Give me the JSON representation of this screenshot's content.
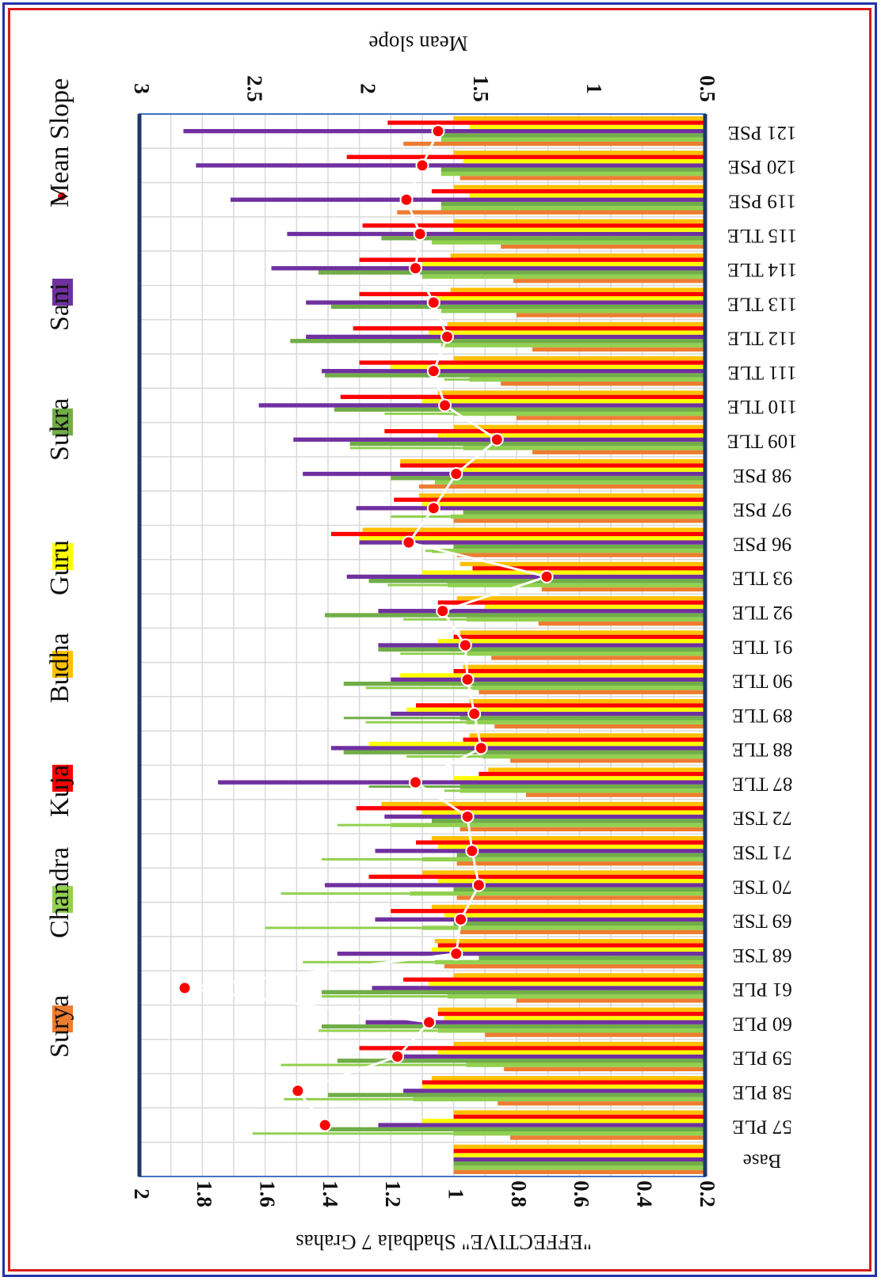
{
  "chart_data": {
    "type": "bar",
    "orientation": "horizontal-rotated",
    "categories": [
      "Base",
      "57 PLE",
      "58 PLE",
      "59 PLE",
      "60 PLE",
      "61 PLE",
      "68 TSE",
      "69 TSE",
      "70 TSE",
      "71 TSE",
      "72 TSE",
      "87 TLE",
      "88 TLE",
      "89 TLE",
      "90 TLE",
      "91 TLE",
      "92 TLE",
      "93 TLE",
      "96 PSE",
      "97 PSE",
      "98 PSE",
      "109 TLE",
      "110 TLE",
      "111 TLE",
      "112 TLE",
      "113 TLE",
      "114 TLE",
      "115 TLE",
      "119 PSE",
      "120 PSE",
      "121 PSE"
    ],
    "series": [
      {
        "name": "Surya",
        "color": "#ed7d31",
        "values": [
          1.0,
          0.82,
          0.86,
          0.84,
          0.9,
          0.8,
          1.03,
          0.98,
          0.99,
          0.99,
          0.98,
          0.77,
          0.82,
          0.87,
          0.92,
          0.88,
          0.73,
          0.72,
          0.99,
          1.0,
          1.11,
          0.75,
          0.8,
          0.85,
          0.75,
          0.8,
          0.81,
          0.85,
          1.18,
          0.98,
          1.16
        ],
        "lo": [
          1.0,
          0.82,
          0.86,
          0.84,
          0.9,
          0.8,
          1.03,
          0.98,
          0.99,
          0.99,
          0.98,
          0.77,
          0.82,
          0.87,
          0.92,
          0.88,
          0.73,
          0.72,
          0.99,
          1.0,
          1.11,
          0.75,
          0.8,
          0.85,
          0.75,
          0.8,
          0.81,
          0.85,
          1.18,
          0.98,
          1.16
        ],
        "hi": [
          1.0,
          0.82,
          0.86,
          0.84,
          0.9,
          0.8,
          1.03,
          0.98,
          0.99,
          0.99,
          0.98,
          0.77,
          0.82,
          0.87,
          0.92,
          0.88,
          0.73,
          0.72,
          0.99,
          1.0,
          1.11,
          0.75,
          0.8,
          0.85,
          0.75,
          0.8,
          0.81,
          0.85,
          1.18,
          0.98,
          1.16
        ]
      },
      {
        "name": "Chandra",
        "color": "#92d050",
        "values": [
          1.0,
          1.0,
          1.13,
          0.96,
          1.05,
          1.02,
          1.06,
          1.1,
          1.14,
          1.1,
          1.2,
          0.98,
          0.91,
          0.96,
          0.94,
          0.96,
          0.96,
          1.02,
          1.07,
          1.01,
          1.06,
          0.97,
          1.0,
          0.95,
          1.04,
          1.04,
          1.1,
          1.07,
          1.04,
          1.04,
          1.04
        ],
        "lo": [
          1.0,
          1.0,
          1.13,
          0.96,
          1.05,
          1.02,
          1.06,
          1.1,
          1.14,
          1.1,
          1.2,
          0.98,
          0.91,
          0.96,
          0.94,
          0.96,
          0.96,
          1.02,
          1.07,
          1.01,
          1.06,
          0.97,
          1.0,
          0.95,
          1.04,
          1.04,
          1.1,
          1.07,
          1.04,
          1.04,
          1.04
        ],
        "hi": [
          1.0,
          1.64,
          1.54,
          1.55,
          1.43,
          1.42,
          1.48,
          1.6,
          1.55,
          1.42,
          1.37,
          1.03,
          1.15,
          1.28,
          1.28,
          1.17,
          1.16,
          1.21,
          1.09,
          1.2,
          1.06,
          1.33,
          1.22,
          1.03,
          1.04,
          1.04,
          1.1,
          1.07,
          1.04,
          1.04,
          1.04
        ]
      },
      {
        "name": "Sukra",
        "color": "#70ad47",
        "values": [
          1.0,
          1.4,
          1.4,
          1.37,
          1.42,
          1.42,
          0.92,
          1.0,
          1.0,
          0.99,
          1.07,
          0.98,
          1.35,
          0.98,
          1.35,
          1.24,
          1.41,
          1.27,
          1.0,
          0.97,
          1.2,
          1.33,
          1.38,
          1.41,
          1.52,
          1.39,
          1.43,
          1.23,
          1.04,
          1.04,
          1.04
        ],
        "lo": [
          1.0,
          1.0,
          1.0,
          1.0,
          1.0,
          1.0,
          0.92,
          1.0,
          1.0,
          0.99,
          1.07,
          0.98,
          1.0,
          0.98,
          1.0,
          1.0,
          1.0,
          1.0,
          1.0,
          0.97,
          1.0,
          1.0,
          1.0,
          1.0,
          1.0,
          1.0,
          1.0,
          1.0,
          1.04,
          1.04,
          1.04
        ],
        "hi": [
          1.0,
          1.4,
          1.4,
          1.37,
          1.42,
          1.42,
          0.92,
          1.0,
          1.0,
          0.99,
          1.07,
          1.27,
          1.35,
          1.35,
          1.35,
          1.24,
          1.41,
          1.27,
          1.0,
          0.97,
          1.2,
          1.33,
          1.38,
          1.41,
          1.52,
          1.39,
          1.43,
          1.23,
          1.04,
          1.04,
          1.04
        ]
      },
      {
        "name": "Sani",
        "color": "#7030a0",
        "values": [
          1.0,
          1.24,
          1.16,
          1.16,
          1.28,
          1.26,
          1.37,
          1.25,
          1.41,
          1.25,
          1.22,
          1.75,
          1.39,
          1.2,
          1.2,
          1.24,
          1.24,
          1.34,
          1.3,
          1.31,
          1.48,
          1.51,
          1.62,
          1.42,
          1.47,
          1.47,
          1.58,
          1.53,
          1.71,
          1.82,
          1.86
        ],
        "lo": [
          1.0,
          1.0,
          1.0,
          1.0,
          1.0,
          1.0,
          1.0,
          1.0,
          1.0,
          1.0,
          1.0,
          1.0,
          1.0,
          1.0,
          1.0,
          1.0,
          1.0,
          1.0,
          1.0,
          1.0,
          1.0,
          1.0,
          1.0,
          1.0,
          1.0,
          1.0,
          1.0,
          1.0,
          1.0,
          1.0,
          1.0
        ],
        "hi": [
          1.0,
          1.24,
          1.16,
          1.16,
          1.28,
          1.26,
          1.37,
          1.25,
          1.41,
          1.25,
          1.22,
          1.75,
          1.39,
          1.2,
          1.2,
          1.24,
          1.24,
          1.34,
          1.3,
          1.31,
          1.48,
          1.51,
          1.62,
          1.42,
          1.47,
          1.47,
          1.58,
          1.53,
          1.71,
          1.82,
          1.86
        ]
      },
      {
        "name": "Guru",
        "color": "#ffff00",
        "values": [
          1.0,
          1.1,
          1.1,
          1.05,
          1.03,
          1.08,
          1.07,
          1.03,
          1.05,
          1.05,
          1.1,
          1.0,
          1.27,
          1.15,
          1.17,
          1.05,
          0.9,
          1.1,
          1.3,
          1.1,
          1.0,
          1.05,
          1.1,
          1.2,
          1.08,
          1.07,
          1.1,
          1.0,
          0.95,
          0.97,
          0.95
        ],
        "lo": [
          1.0,
          1.0,
          1.0,
          1.0,
          1.0,
          1.0,
          1.0,
          1.0,
          1.0,
          1.0,
          1.0,
          1.0,
          1.0,
          1.0,
          1.0,
          1.0,
          0.9,
          1.0,
          1.0,
          1.0,
          1.0,
          1.0,
          1.0,
          1.0,
          1.0,
          1.0,
          1.0,
          1.0,
          0.95,
          0.97,
          0.95
        ],
        "hi": [
          1.0,
          1.1,
          1.1,
          1.05,
          1.03,
          1.08,
          1.07,
          1.03,
          1.05,
          1.05,
          1.1,
          1.0,
          1.27,
          1.15,
          1.17,
          1.05,
          0.9,
          1.1,
          1.3,
          1.1,
          1.0,
          1.05,
          1.1,
          1.2,
          1.08,
          1.07,
          1.1,
          1.0,
          0.95,
          0.97,
          0.95
        ]
      },
      {
        "name": "Kuja",
        "color": "#ff0000",
        "values": [
          1.0,
          1.0,
          1.1,
          1.3,
          1.05,
          1.16,
          1.05,
          1.2,
          1.27,
          1.12,
          1.31,
          0.92,
          0.97,
          1.12,
          1.0,
          1.0,
          1.05,
          0.94,
          1.39,
          1.19,
          1.17,
          1.22,
          1.36,
          1.3,
          1.32,
          1.3,
          1.3,
          1.29,
          1.07,
          1.34,
          1.21
        ],
        "lo": [
          1.0,
          1.0,
          1.0,
          1.0,
          0.96,
          1.0,
          0.92,
          0.92,
          0.94,
          0.97,
          0.92,
          0.92,
          0.89,
          0.87,
          0.92,
          1.0,
          0.86,
          0.92,
          0.97,
          1.02,
          0.94,
          0.96,
          0.94,
          0.95,
          0.94,
          0.9,
          0.95,
          0.95,
          1.07,
          1.0,
          1.05
        ],
        "hi": [
          1.0,
          1.0,
          1.1,
          1.3,
          1.05,
          1.16,
          1.05,
          1.2,
          1.27,
          1.12,
          1.31,
          0.92,
          0.97,
          1.12,
          1.0,
          1.0,
          1.05,
          0.94,
          1.39,
          1.19,
          1.17,
          1.22,
          1.36,
          1.3,
          1.32,
          1.3,
          1.3,
          1.29,
          1.07,
          1.34,
          1.21
        ]
      },
      {
        "name": "Budha",
        "color": "#ffc000",
        "values": [
          1.0,
          1.0,
          1.07,
          1.0,
          1.05,
          1.0,
          1.06,
          1.07,
          1.1,
          1.07,
          1.23,
          0.89,
          0.95,
          0.95,
          0.97,
          0.98,
          0.99,
          0.98,
          1.29,
          1.11,
          1.17,
          1.0,
          1.05,
          1.0,
          1.02,
          1.01,
          1.01,
          1.0,
          1.0,
          1.0,
          1.0
        ],
        "lo": [
          1.0,
          1.0,
          1.0,
          1.0,
          1.0,
          1.0,
          1.0,
          1.0,
          1.0,
          1.0,
          1.0,
          0.89,
          0.95,
          0.95,
          0.97,
          0.98,
          0.99,
          0.98,
          1.0,
          1.0,
          1.0,
          1.0,
          1.0,
          1.0,
          1.0,
          1.0,
          1.0,
          1.0,
          1.0,
          1.0,
          1.0
        ],
        "hi": [
          1.0,
          1.0,
          1.07,
          1.0,
          1.05,
          1.0,
          1.06,
          1.07,
          1.1,
          1.07,
          1.23,
          0.89,
          0.95,
          0.95,
          0.97,
          0.98,
          0.99,
          0.98,
          1.29,
          1.11,
          1.17,
          1.0,
          1.05,
          1.0,
          1.02,
          1.01,
          1.01,
          1.0,
          1.0,
          1.0,
          1.0
        ]
      }
    ],
    "mean_slope": {
      "name": "Mean Slope",
      "color": "#ff0000",
      "values": [
        null,
        2.18,
        2.3,
        1.86,
        1.72,
        2.8,
        1.6,
        1.58,
        1.5,
        1.53,
        1.55,
        1.78,
        1.49,
        1.52,
        1.55,
        1.56,
        1.66,
        1.2,
        1.81,
        1.7,
        1.6,
        1.42,
        1.65,
        1.7,
        1.64,
        1.7,
        1.78,
        1.76,
        1.82,
        1.75,
        1.68
      ]
    },
    "ylabel": "\"EFFECTIVE\" Shadbala 7 Grahas",
    "y2label": "Mean slope",
    "ylim": [
      0.2,
      2
    ],
    "y_ticks": [
      "0.2",
      "0.4",
      "0.6",
      "0.8",
      "1",
      "1.2",
      "1.4",
      "1.6",
      "1.8",
      "2"
    ],
    "y2lim": [
      0.5,
      3
    ],
    "y2_ticks": [
      "0.5",
      "1",
      "1.5",
      "2",
      "2.5",
      "3"
    ],
    "legend": [
      "Surya",
      "Chandra",
      "Kuja",
      "Budha",
      "Guru",
      "Sukra",
      "Sani",
      "Mean Slope"
    ],
    "legend_position": "right (rotated)",
    "grid": true,
    "rotation": "chart rotated 90° clockwise"
  }
}
